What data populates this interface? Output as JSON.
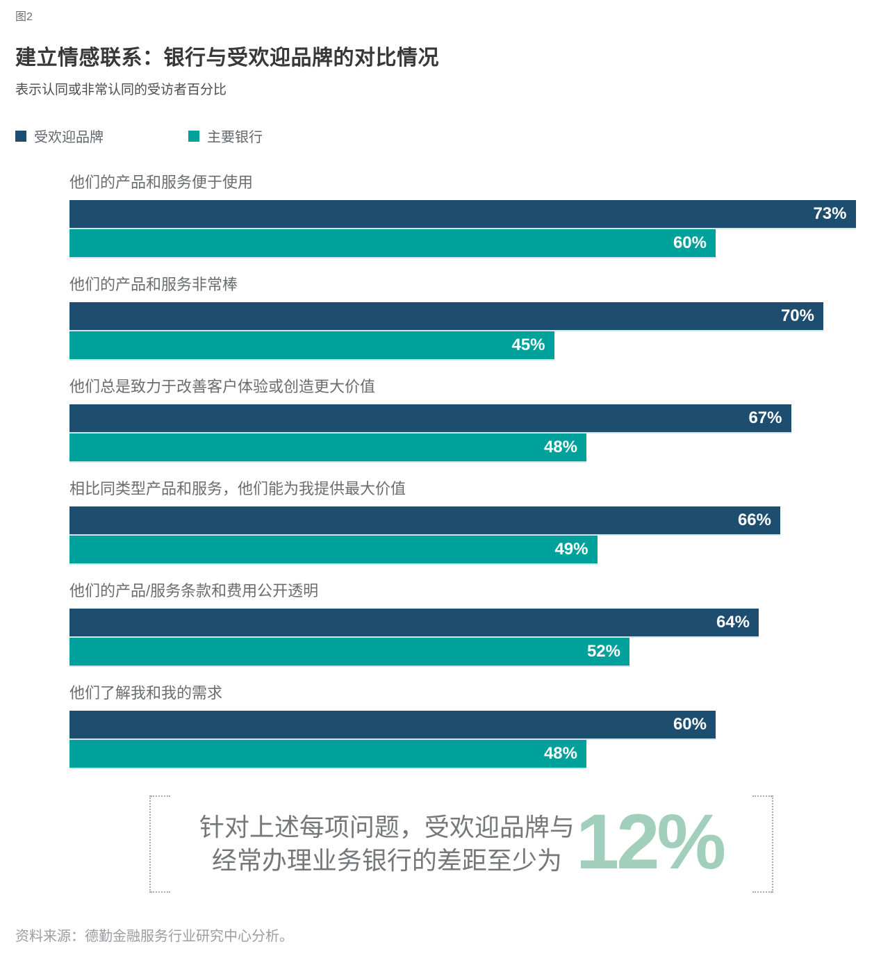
{
  "figure_label": "图2",
  "title": "建立情感联系：银行与受欢迎品牌的对比情况",
  "subtitle": "表示认同或非常认同的受访者百分比",
  "legend": [
    {
      "label": "受欢迎品牌",
      "color": "#1d4e70"
    },
    {
      "label": "主要银行",
      "color": "#00a19b"
    }
  ],
  "chart_data": {
    "type": "bar",
    "orientation": "horizontal",
    "categories": [
      "他们的产品和服务便于使用",
      "他们的产品和服务非常棒",
      "他们总是致力于改善客户体验或创造更大价值",
      "相比同类型产品和服务，他们能为我提供最大价值",
      "他们的产品/服务条款和费用公开透明",
      "他们了解我和我的需求"
    ],
    "series": [
      {
        "name": "受欢迎品牌",
        "color": "#1d4e70",
        "values": [
          73,
          70,
          67,
          66,
          64,
          60
        ]
      },
      {
        "name": "主要银行",
        "color": "#00a19b",
        "values": [
          60,
          45,
          48,
          49,
          52,
          48
        ]
      }
    ],
    "value_format": "percent",
    "xlim": [
      0,
      75
    ],
    "grid": false,
    "legend_position": "top-left"
  },
  "callout": {
    "line1": "针对上述每项问题，受欢迎品牌与",
    "line2": "经常办理业务银行的差距至少为",
    "highlight": "12%",
    "highlight_color": "#a2cfbc"
  },
  "source": "资料来源：德勤金融服务行业研究中心分析。"
}
